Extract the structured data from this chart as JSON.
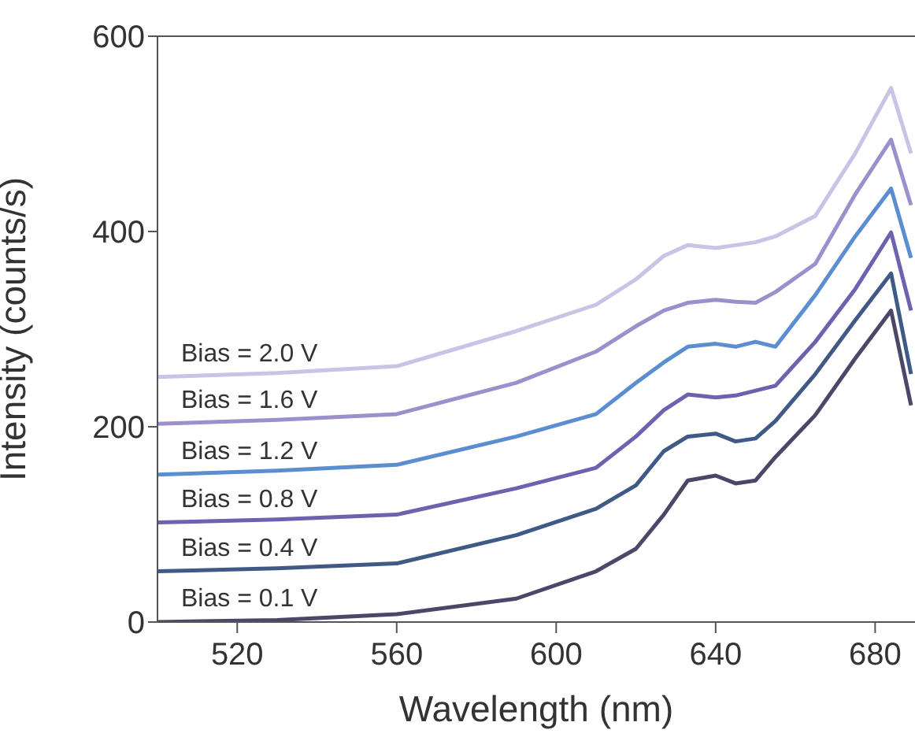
{
  "chart_data": {
    "type": "line",
    "xlabel": "Wavelength (nm)",
    "ylabel": "Intensity (counts/s)",
    "xlim": [
      500,
      690
    ],
    "xticks": [
      520,
      560,
      600,
      640,
      680
    ],
    "ylim": [
      0,
      600
    ],
    "yticks": [
      0,
      200,
      400,
      600
    ],
    "grid": false,
    "legend": false,
    "marker": "none",
    "line_style": "solid",
    "x": [
      500,
      530,
      560,
      590,
      610,
      620,
      627,
      633,
      640,
      645,
      650,
      655,
      665,
      675,
      684,
      689
    ],
    "series": [
      {
        "name": "Bias = 0.1 V",
        "color": "#4a4868",
        "values": [
          0,
          2,
          8,
          24,
          52,
          75,
          110,
          145,
          150,
          142,
          145,
          169,
          212,
          270,
          319,
          222
        ]
      },
      {
        "name": "Bias = 0.4 V",
        "color": "#3f5a86",
        "values": [
          52,
          55,
          60,
          89,
          116,
          140,
          175,
          190,
          193,
          185,
          188,
          206,
          254,
          309,
          357,
          254
        ]
      },
      {
        "name": "Bias = 0.8 V",
        "color": "#6b62b0",
        "values": [
          102,
          105,
          110,
          137,
          158,
          190,
          217,
          233,
          230,
          232,
          237,
          242,
          287,
          341,
          399,
          319
        ]
      },
      {
        "name": "Bias = 1.2 V",
        "color": "#5b8ed0",
        "values": [
          151,
          155,
          161,
          190,
          213,
          245,
          266,
          282,
          285,
          282,
          287,
          282,
          335,
          395,
          444,
          373
        ]
      },
      {
        "name": "Bias = 1.6 V",
        "color": "#9c8fcc",
        "values": [
          203,
          207,
          213,
          245,
          277,
          303,
          319,
          327,
          330,
          328,
          327,
          338,
          367,
          438,
          494,
          427
        ]
      },
      {
        "name": "Bias = 2.0 V",
        "color": "#c9c3e6",
        "values": [
          251,
          255,
          262,
          298,
          325,
          351,
          375,
          386,
          383,
          386,
          389,
          395,
          416,
          480,
          547,
          480
        ]
      }
    ]
  }
}
